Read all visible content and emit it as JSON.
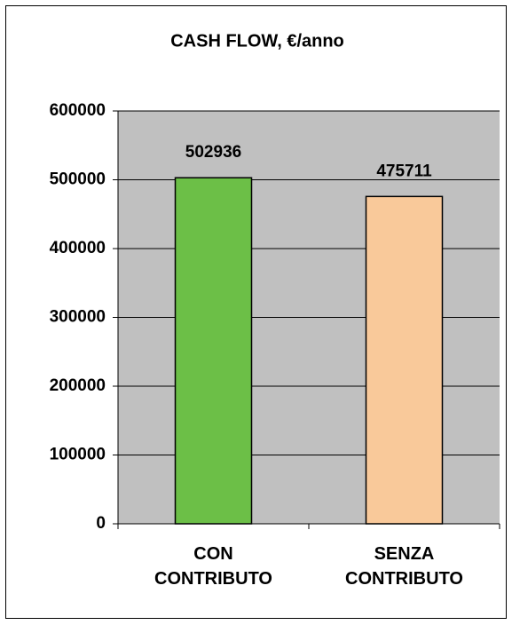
{
  "chart_data": {
    "type": "bar",
    "title": "CASH FLOW, €/anno",
    "categories": [
      "CON CONTRIBUTO",
      "SENZA CONTRIBUTO"
    ],
    "values": [
      502936,
      475711
    ],
    "colors": [
      "#6cbf47",
      "#f9c99a"
    ],
    "ylim": [
      0,
      600000
    ],
    "yticks": [
      0,
      100000,
      200000,
      300000,
      400000,
      500000,
      600000
    ],
    "grid": true
  }
}
